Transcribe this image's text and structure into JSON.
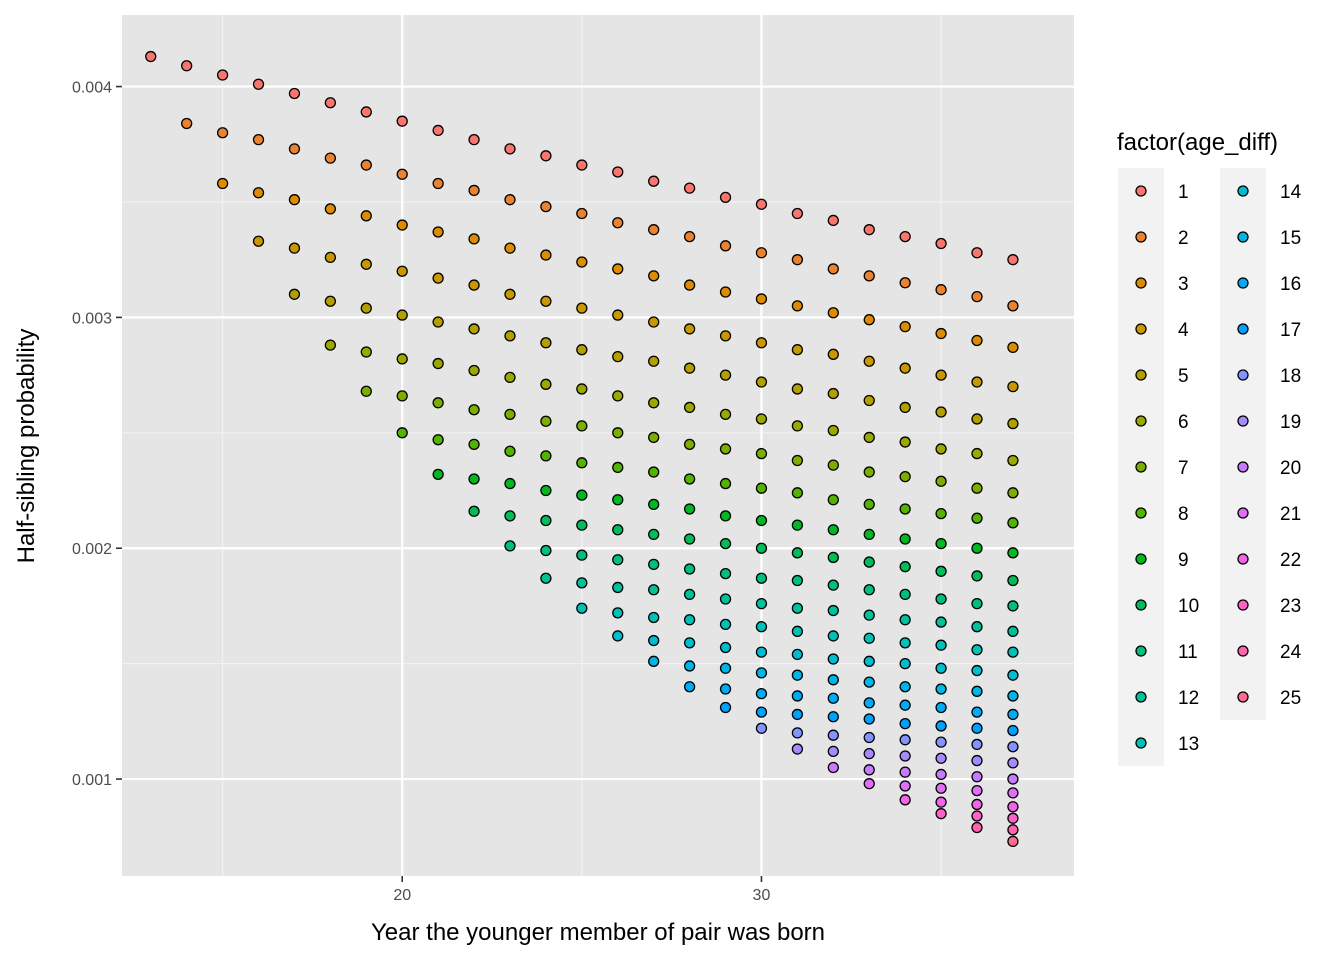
{
  "chart_data": {
    "type": "scatter",
    "xlabel": "Year the younger member of pair was born",
    "ylabel": "Half-sibling probability",
    "xlim": [
      12.2,
      38.7
    ],
    "ylim": [
      0.00058,
      0.00431
    ],
    "x_ticks": [
      {
        "value": 20,
        "label": "20"
      },
      {
        "value": 30,
        "label": "30"
      }
    ],
    "x_minor_ticks": [
      15,
      25,
      35
    ],
    "y_ticks": [
      {
        "value": 0.001,
        "label": "0.001"
      },
      {
        "value": 0.002,
        "label": "0.002"
      },
      {
        "value": 0.003,
        "label": "0.003"
      },
      {
        "value": 0.004,
        "label": "0.004"
      }
    ],
    "y_minor_ticks": [
      0.0015,
      0.0025,
      0.0035
    ],
    "grid": true,
    "panel_background": "#e5e5e5",
    "point_outline": "#000000",
    "legend": {
      "title": "factor(age_diff)",
      "placement": "right",
      "columns": 2,
      "levels": [
        "1",
        "2",
        "3",
        "4",
        "5",
        "6",
        "7",
        "8",
        "9",
        "10",
        "11",
        "12",
        "13",
        "14",
        "15",
        "16",
        "17",
        "18",
        "19",
        "20",
        "21",
        "22",
        "23",
        "24",
        "25"
      ],
      "colors": [
        "#F8766D",
        "#EA8331",
        "#DC8C00",
        "#C99800",
        "#B3A000",
        "#9AA800",
        "#7CAE00",
        "#53B400",
        "#00B81F",
        "#00BC59",
        "#00BF7D",
        "#00C19C",
        "#00C0B8",
        "#00BCD1",
        "#00B5E6",
        "#00ABF6",
        "#00A0FF",
        "#8494FF",
        "#A58AFF",
        "#C77CFF",
        "#E26EF7",
        "#F265E7",
        "#FF61C9",
        "#FF64B0",
        "#FF6C91"
      ]
    },
    "x_start_year": [
      13,
      14,
      15,
      16,
      17,
      18,
      19,
      20,
      21,
      22,
      23,
      24,
      25,
      26,
      27,
      28,
      29,
      30,
      31,
      32,
      33,
      34,
      35,
      36,
      37
    ],
    "x_end_year": 37,
    "series": [
      {
        "name": "1",
        "y": [
          0.00413,
          0.00409,
          0.00405,
          0.00401,
          0.00397,
          0.00393,
          0.00389,
          0.00385,
          0.00381,
          0.00377,
          0.00373,
          0.0037,
          0.00366,
          0.00363,
          0.00359,
          0.00356,
          0.00352,
          0.00349,
          0.00345,
          0.00342,
          0.00338,
          0.00335,
          0.00332,
          0.00328,
          0.00325
        ]
      },
      {
        "name": "2",
        "y": [
          0.00384,
          0.0038,
          0.00377,
          0.00373,
          0.00369,
          0.00366,
          0.00362,
          0.00358,
          0.00355,
          0.00351,
          0.00348,
          0.00345,
          0.00341,
          0.00338,
          0.00335,
          0.00331,
          0.00328,
          0.00325,
          0.00321,
          0.00318,
          0.00315,
          0.00312,
          0.00309,
          0.00305
        ]
      },
      {
        "name": "3",
        "y": [
          0.00358,
          0.00354,
          0.00351,
          0.00347,
          0.00344,
          0.0034,
          0.00337,
          0.00334,
          0.0033,
          0.00327,
          0.00324,
          0.00321,
          0.00318,
          0.00314,
          0.00311,
          0.00308,
          0.00305,
          0.00302,
          0.00299,
          0.00296,
          0.00293,
          0.0029,
          0.00287
        ]
      },
      {
        "name": "4",
        "y": [
          0.00333,
          0.0033,
          0.00326,
          0.00323,
          0.0032,
          0.00317,
          0.00314,
          0.0031,
          0.00307,
          0.00304,
          0.00301,
          0.00298,
          0.00295,
          0.00292,
          0.00289,
          0.00286,
          0.00284,
          0.00281,
          0.00278,
          0.00275,
          0.00272,
          0.0027
        ]
      },
      {
        "name": "5",
        "y": [
          0.0031,
          0.00307,
          0.00304,
          0.00301,
          0.00298,
          0.00295,
          0.00292,
          0.00289,
          0.00286,
          0.00283,
          0.00281,
          0.00278,
          0.00275,
          0.00272,
          0.00269,
          0.00267,
          0.00264,
          0.00261,
          0.00259,
          0.00256,
          0.00254
        ]
      },
      {
        "name": "6",
        "y": [
          0.00288,
          0.00285,
          0.00282,
          0.0028,
          0.00277,
          0.00274,
          0.00271,
          0.00269,
          0.00266,
          0.00263,
          0.00261,
          0.00258,
          0.00256,
          0.00253,
          0.00251,
          0.00248,
          0.00246,
          0.00243,
          0.00241,
          0.00238
        ]
      },
      {
        "name": "7",
        "y": [
          0.00268,
          0.00266,
          0.00263,
          0.0026,
          0.00258,
          0.00255,
          0.00253,
          0.0025,
          0.00248,
          0.00245,
          0.00243,
          0.00241,
          0.00238,
          0.00236,
          0.00233,
          0.00231,
          0.00229,
          0.00226,
          0.00224
        ]
      },
      {
        "name": "8",
        "y": [
          0.0025,
          0.00247,
          0.00245,
          0.00242,
          0.0024,
          0.00237,
          0.00235,
          0.00233,
          0.0023,
          0.00228,
          0.00226,
          0.00224,
          0.00221,
          0.00219,
          0.00217,
          0.00215,
          0.00213,
          0.00211
        ]
      },
      {
        "name": "9",
        "y": [
          0.00232,
          0.0023,
          0.00228,
          0.00225,
          0.00223,
          0.00221,
          0.00219,
          0.00217,
          0.00214,
          0.00212,
          0.0021,
          0.00208,
          0.00206,
          0.00204,
          0.00202,
          0.002,
          0.00198
        ]
      },
      {
        "name": "10",
        "y": [
          0.00216,
          0.00214,
          0.00212,
          0.0021,
          0.00208,
          0.00206,
          0.00204,
          0.00202,
          0.002,
          0.00198,
          0.00196,
          0.00194,
          0.00192,
          0.0019,
          0.00188,
          0.00186
        ]
      },
      {
        "name": "11",
        "y": [
          0.00201,
          0.00199,
          0.00197,
          0.00195,
          0.00193,
          0.00191,
          0.00189,
          0.00187,
          0.00186,
          0.00184,
          0.00182,
          0.0018,
          0.00178,
          0.00176,
          0.00175
        ]
      },
      {
        "name": "12",
        "y": [
          0.00187,
          0.00185,
          0.00183,
          0.00182,
          0.0018,
          0.00178,
          0.00176,
          0.00174,
          0.00173,
          0.00171,
          0.00169,
          0.00168,
          0.00166,
          0.00164
        ]
      },
      {
        "name": "13",
        "y": [
          0.00174,
          0.00172,
          0.0017,
          0.00169,
          0.00167,
          0.00166,
          0.00164,
          0.00162,
          0.00161,
          0.00159,
          0.00158,
          0.00156,
          0.00155
        ]
      },
      {
        "name": "14",
        "y": [
          0.00162,
          0.0016,
          0.00159,
          0.00157,
          0.00155,
          0.00154,
          0.00152,
          0.00151,
          0.0015,
          0.00148,
          0.00147,
          0.00145
        ]
      },
      {
        "name": "15",
        "y": [
          0.00151,
          0.00149,
          0.00148,
          0.00146,
          0.00145,
          0.00143,
          0.00142,
          0.0014,
          0.00139,
          0.00138,
          0.00136
        ]
      },
      {
        "name": "16",
        "y": [
          0.0014,
          0.00139,
          0.00137,
          0.00136,
          0.00135,
          0.00133,
          0.00132,
          0.00131,
          0.00129,
          0.00128
        ]
      },
      {
        "name": "17",
        "y": [
          0.00131,
          0.00129,
          0.00128,
          0.00127,
          0.00126,
          0.00124,
          0.00123,
          0.00122,
          0.00121
        ]
      },
      {
        "name": "18",
        "y": [
          0.00122,
          0.0012,
          0.00119,
          0.00118,
          0.00117,
          0.00116,
          0.00115,
          0.00114
        ]
      },
      {
        "name": "19",
        "y": [
          0.00113,
          0.00112,
          0.00111,
          0.0011,
          0.00109,
          0.00108,
          0.00107
        ]
      },
      {
        "name": "20",
        "y": [
          0.00105,
          0.00104,
          0.00103,
          0.00102,
          0.00101,
          0.001
        ]
      },
      {
        "name": "21",
        "y": [
          0.00098,
          0.00097,
          0.00096,
          0.00095,
          0.00094
        ]
      },
      {
        "name": "22",
        "y": [
          0.00091,
          0.0009,
          0.00089,
          0.00088
        ]
      },
      {
        "name": "23",
        "y": [
          0.00085,
          0.00084,
          0.00083
        ]
      },
      {
        "name": "24",
        "y": [
          0.00079,
          0.00078
        ]
      },
      {
        "name": "25",
        "y": [
          0.00073
        ]
      }
    ]
  }
}
